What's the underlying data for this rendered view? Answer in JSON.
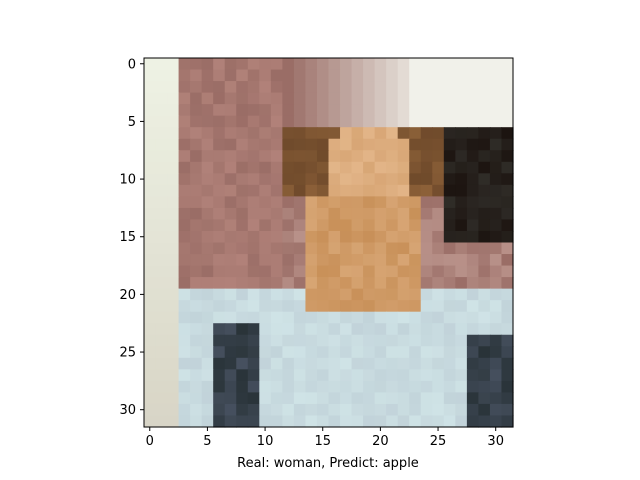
{
  "figure": {
    "xlabel": "Real: woman, Predict: apple"
  },
  "image": {
    "grid_size": 32,
    "description_palette": {
      "background_light": "#eef2e4",
      "wall_mauve": "#9a6d66",
      "skin_tone": "#d7a574",
      "hair_brown": "#6f4a2b",
      "shirt_light_blue": "#cfe3e6",
      "dark_shadow": "#1c1410",
      "curtain_white": "#f1f1ea"
    }
  },
  "axes": {
    "x_ticks": [
      "0",
      "5",
      "10",
      "15",
      "20",
      "25",
      "30"
    ],
    "y_ticks": [
      "0",
      "5",
      "10",
      "15",
      "20",
      "25",
      "30"
    ],
    "x_tick_values": [
      0,
      5,
      10,
      15,
      20,
      25,
      30
    ],
    "y_tick_values": [
      0,
      5,
      10,
      15,
      20,
      25,
      30
    ],
    "xlim": [
      -0.5,
      31.5
    ],
    "ylim": [
      31.5,
      -0.5
    ]
  }
}
